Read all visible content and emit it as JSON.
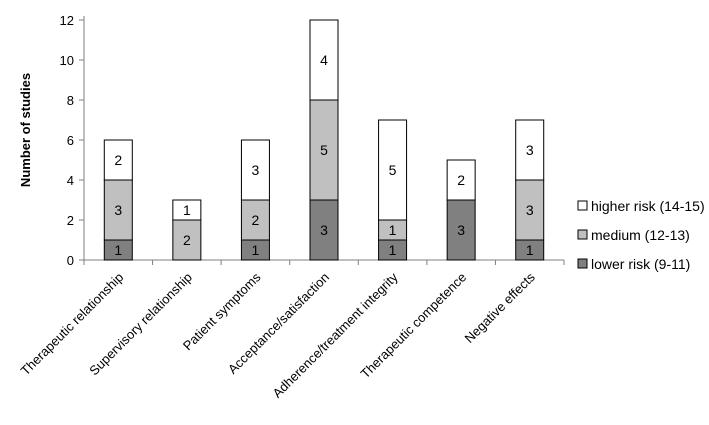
{
  "chart_data": {
    "type": "bar",
    "stacked": true,
    "ylabel": "Number of studies",
    "ylim": [
      0,
      12
    ],
    "yticks": [
      0,
      2,
      4,
      6,
      8,
      10,
      12
    ],
    "grid": false,
    "legend_position": "right",
    "categories": [
      "Therapeutic relationship",
      "Supervisory relationship",
      "Patient symptoms",
      "Acceptance/satisfaction",
      "Adherence/treatment integrity",
      "Therapeutic competence",
      "Negative effects"
    ],
    "series": [
      {
        "name": "lower risk (9-11)",
        "color": "#808080",
        "values": [
          1,
          0,
          1,
          3,
          1,
          3,
          1
        ]
      },
      {
        "name": "medium (12-13)",
        "color": "#c0c0c0",
        "values": [
          3,
          2,
          2,
          5,
          1,
          0,
          3
        ]
      },
      {
        "name": "higher risk (14-15)",
        "color": "#ffffff",
        "values": [
          2,
          1,
          3,
          4,
          5,
          2,
          3
        ]
      }
    ],
    "legend_order": [
      2,
      1,
      0
    ]
  }
}
